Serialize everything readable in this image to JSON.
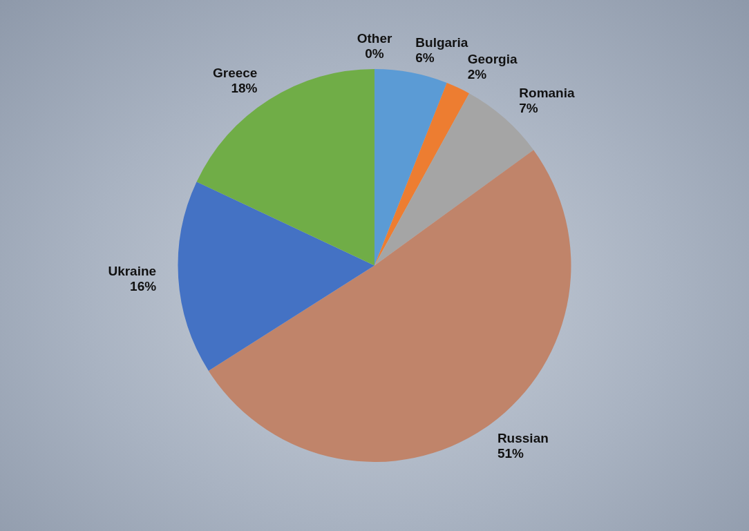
{
  "chart_data": {
    "type": "pie",
    "categories": [
      "Other",
      "Bulgaria",
      "Georgia",
      "Romania",
      "Russian",
      "Ukraine",
      "Greece"
    ],
    "values": [
      0,
      6,
      2,
      7,
      51,
      16,
      18
    ],
    "value_labels": [
      "0%",
      "6%",
      "2%",
      "7%",
      "51%",
      "16%",
      "18%"
    ],
    "colors": [
      "#1f4e79",
      "#5b9bd5",
      "#ed7d31",
      "#a5a5a5",
      "#c0846a",
      "#4472c4",
      "#70ad47"
    ],
    "data_labels": true
  }
}
